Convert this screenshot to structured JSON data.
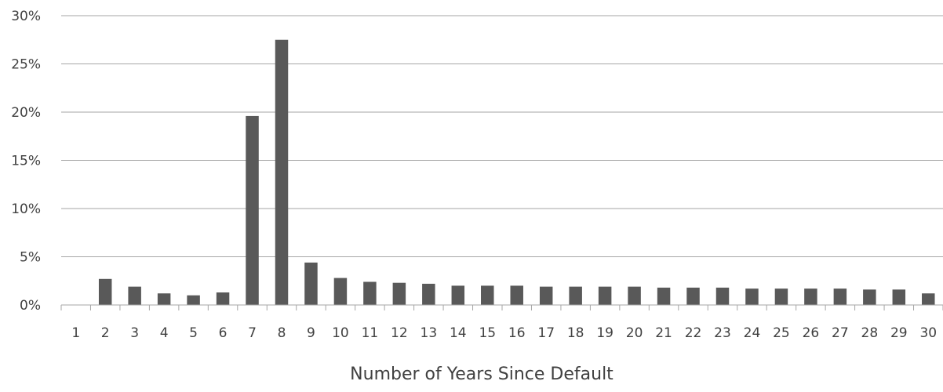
{
  "chart_data": {
    "type": "bar",
    "title": "",
    "xlabel": "Number of Years Since Default",
    "ylabel": "",
    "categories": [
      "1",
      "2",
      "3",
      "4",
      "5",
      "6",
      "7",
      "8",
      "9",
      "10",
      "11",
      "12",
      "13",
      "14",
      "15",
      "16",
      "17",
      "18",
      "19",
      "20",
      "21",
      "22",
      "23",
      "24",
      "25",
      "26",
      "27",
      "28",
      "29",
      "30"
    ],
    "values": [
      0,
      2.7,
      1.9,
      1.2,
      1.0,
      1.3,
      19.6,
      27.5,
      4.4,
      2.8,
      2.4,
      2.3,
      2.2,
      2.0,
      2.0,
      2.0,
      1.9,
      1.9,
      1.9,
      1.9,
      1.8,
      1.8,
      1.8,
      1.7,
      1.7,
      1.7,
      1.7,
      1.6,
      1.6,
      1.2
    ],
    "ylim": [
      0,
      30
    ],
    "y_ticks": [
      0,
      5,
      10,
      15,
      20,
      25,
      30
    ],
    "y_tick_labels": [
      "0%",
      "5%",
      "10%",
      "15%",
      "20%",
      "25%",
      "30%"
    ],
    "grid": true,
    "legend": "none",
    "bar_color": "#595959",
    "grid_color": "#a6a6a6",
    "axis_color": "#a6a6a6"
  }
}
